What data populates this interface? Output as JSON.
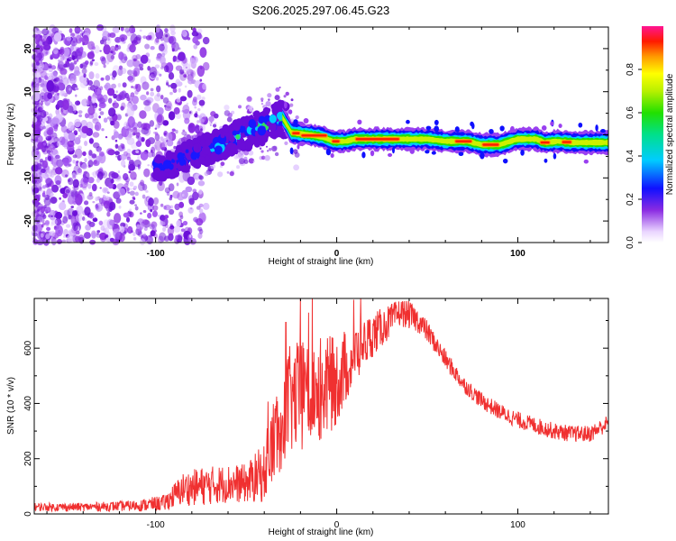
{
  "title": "S206.2025.297.06.45.G23",
  "chart_data": [
    {
      "type": "heatmap",
      "title": "S206.2025.297.06.45.G23",
      "xlabel": "Height of straight line (km)",
      "ylabel": "Frequency (Hz)",
      "xlim": [
        -167,
        150
      ],
      "ylim": [
        -25,
        25
      ],
      "xticks": [
        -100,
        0,
        100
      ],
      "xtick_labels": [
        "-100",
        "0",
        "100"
      ],
      "yticks": [
        -20,
        -10,
        0,
        10,
        20
      ],
      "ytick_labels": [
        "-20",
        "-10",
        "0",
        "10",
        "20"
      ],
      "colorbar": {
        "label": "Normalized spectral amplitude",
        "range": [
          0,
          1
        ],
        "ticks": [
          0.0,
          0.2,
          0.4,
          0.6,
          0.8
        ],
        "tick_labels": [
          "0.0",
          "0.2",
          "0.4",
          "0.6",
          "0.8"
        ]
      },
      "ridge": {
        "points": [
          [
            -95,
            -7.5
          ],
          [
            -80,
            -4.5
          ],
          [
            -65,
            -2.5
          ],
          [
            -50,
            0.5
          ],
          [
            -40,
            2
          ],
          [
            -30,
            4
          ],
          [
            -25,
            0.5
          ],
          [
            -15,
            0
          ],
          [
            -8,
            -0.5
          ],
          [
            -2,
            -1.5
          ],
          [
            5,
            -1.5
          ],
          [
            10,
            -1
          ],
          [
            20,
            -1
          ],
          [
            35,
            -1
          ],
          [
            50,
            -1
          ],
          [
            60,
            -1.5
          ],
          [
            72,
            -1.5
          ],
          [
            80,
            -2.3
          ],
          [
            90,
            -2.3
          ],
          [
            96,
            -1.5
          ],
          [
            100,
            -1
          ],
          [
            110,
            -1
          ],
          [
            115,
            -1.8
          ],
          [
            122,
            -1.5
          ],
          [
            130,
            -1.8
          ],
          [
            150,
            -1.8
          ]
        ],
        "peak_x_ranges": [
          [
            -25,
            -20
          ],
          [
            -20,
            -5
          ],
          [
            -3,
            2
          ],
          [
            10,
            35
          ],
          [
            65,
            75
          ],
          [
            80,
            90
          ],
          [
            112,
            118
          ],
          [
            124,
            130
          ]
        ]
      }
    },
    {
      "type": "line",
      "xlabel": "Height of straight line (km)",
      "ylabel": "SNR (10 * v/v)",
      "xlim": [
        -167,
        150
      ],
      "ylim": [
        0,
        780
      ],
      "xticks": [
        -100,
        0,
        100
      ],
      "xtick_labels": [
        "-100",
        "0",
        "100"
      ],
      "yticks": [
        0,
        200,
        400,
        600
      ],
      "ytick_labels": [
        "0",
        "200",
        "400",
        "600"
      ],
      "series": [
        {
          "name": "SNR",
          "color": "#f03030",
          "envelope_x": [
            -167,
            -140,
            -110,
            -95,
            -85,
            -75,
            -60,
            -50,
            -40,
            -33,
            -28,
            -20,
            -12,
            -5,
            0,
            10,
            20,
            30,
            35,
            40,
            45,
            50,
            55,
            60,
            70,
            80,
            90,
            100,
            110,
            120,
            130,
            140,
            150
          ],
          "envelope_y": [
            25,
            25,
            30,
            40,
            90,
            100,
            110,
            110,
            150,
            300,
            400,
            430,
            450,
            460,
            480,
            580,
            650,
            700,
            730,
            720,
            700,
            660,
            610,
            560,
            470,
            410,
            370,
            340,
            320,
            300,
            290,
            290,
            330
          ],
          "noise_amplitude": [
            15,
            15,
            20,
            30,
            60,
            70,
            70,
            70,
            110,
            180,
            200,
            200,
            200,
            180,
            160,
            110,
            80,
            60,
            50,
            50,
            45,
            40,
            35,
            35,
            30,
            30,
            30,
            30,
            30,
            30,
            30,
            30,
            30
          ]
        }
      ]
    }
  ]
}
